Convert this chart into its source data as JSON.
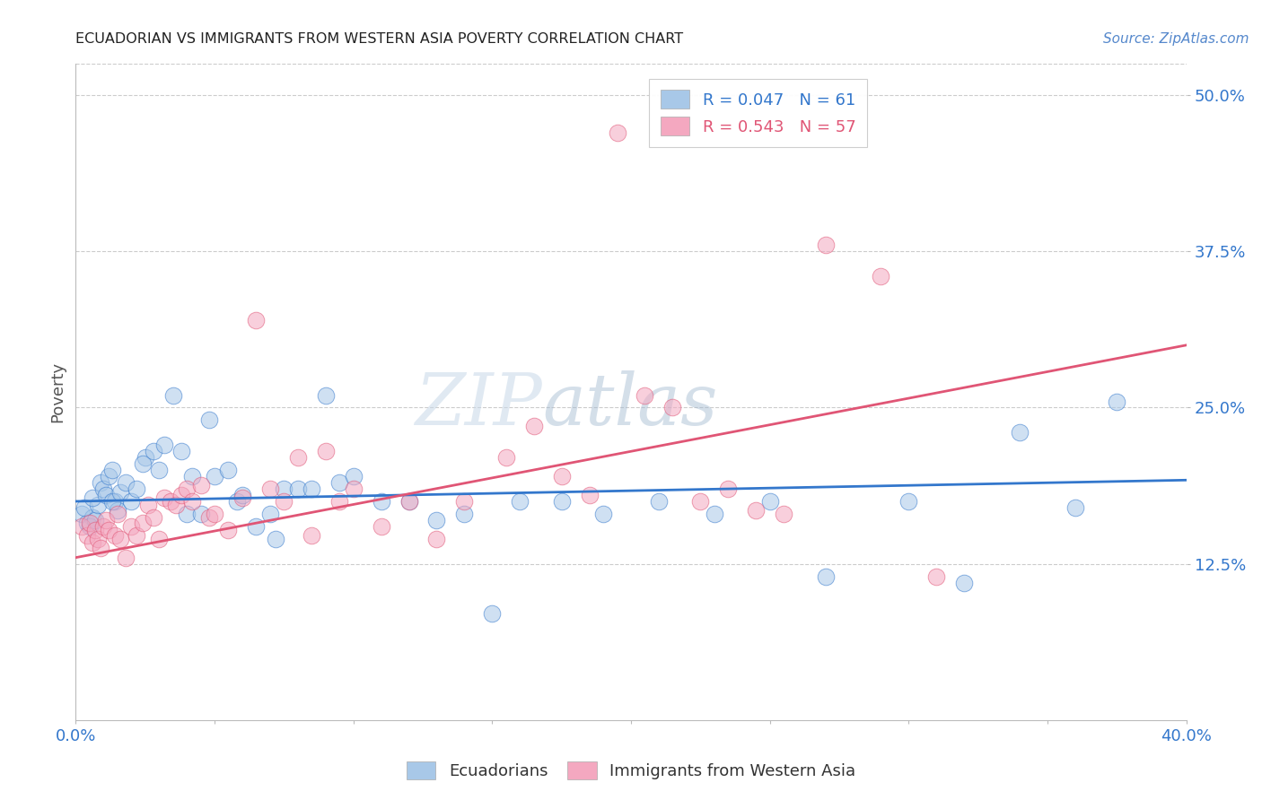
{
  "title": "ECUADORIAN VS IMMIGRANTS FROM WESTERN ASIA POVERTY CORRELATION CHART",
  "source": "Source: ZipAtlas.com",
  "ylabel": "Poverty",
  "ytick_labels": [
    "12.5%",
    "25.0%",
    "37.5%",
    "50.0%"
  ],
  "ytick_values": [
    0.125,
    0.25,
    0.375,
    0.5
  ],
  "xlim": [
    0.0,
    0.4
  ],
  "ylim": [
    0.0,
    0.525
  ],
  "blue_color": "#a8c8e8",
  "pink_color": "#f4a8c0",
  "blue_line_color": "#3377cc",
  "pink_line_color": "#e05575",
  "legend_blue_R": "R = 0.047",
  "legend_blue_N": "N = 61",
  "legend_pink_R": "R = 0.543",
  "legend_pink_N": "N = 57",
  "blue_scatter_x": [
    0.002,
    0.004,
    0.006,
    0.003,
    0.005,
    0.007,
    0.008,
    0.006,
    0.009,
    0.01,
    0.012,
    0.011,
    0.013,
    0.014,
    0.015,
    0.013,
    0.016,
    0.018,
    0.02,
    0.022,
    0.025,
    0.024,
    0.028,
    0.03,
    0.032,
    0.035,
    0.038,
    0.04,
    0.042,
    0.045,
    0.048,
    0.05,
    0.055,
    0.058,
    0.06,
    0.065,
    0.07,
    0.072,
    0.075,
    0.08,
    0.085,
    0.09,
    0.095,
    0.1,
    0.11,
    0.12,
    0.13,
    0.14,
    0.15,
    0.16,
    0.175,
    0.19,
    0.21,
    0.23,
    0.25,
    0.27,
    0.3,
    0.32,
    0.34,
    0.36,
    0.375
  ],
  "blue_scatter_y": [
    0.165,
    0.158,
    0.162,
    0.17,
    0.155,
    0.16,
    0.172,
    0.178,
    0.19,
    0.185,
    0.195,
    0.18,
    0.2,
    0.175,
    0.168,
    0.175,
    0.182,
    0.19,
    0.175,
    0.185,
    0.21,
    0.205,
    0.215,
    0.2,
    0.22,
    0.26,
    0.215,
    0.165,
    0.195,
    0.165,
    0.24,
    0.195,
    0.2,
    0.175,
    0.18,
    0.155,
    0.165,
    0.145,
    0.185,
    0.185,
    0.185,
    0.26,
    0.19,
    0.195,
    0.175,
    0.175,
    0.16,
    0.165,
    0.085,
    0.175,
    0.175,
    0.165,
    0.175,
    0.165,
    0.175,
    0.115,
    0.175,
    0.11,
    0.23,
    0.17,
    0.255
  ],
  "pink_scatter_x": [
    0.002,
    0.004,
    0.006,
    0.005,
    0.007,
    0.008,
    0.009,
    0.01,
    0.011,
    0.012,
    0.014,
    0.015,
    0.016,
    0.018,
    0.02,
    0.022,
    0.024,
    0.026,
    0.028,
    0.03,
    0.032,
    0.034,
    0.036,
    0.038,
    0.04,
    0.042,
    0.045,
    0.048,
    0.05,
    0.055,
    0.06,
    0.065,
    0.07,
    0.075,
    0.08,
    0.085,
    0.09,
    0.095,
    0.1,
    0.11,
    0.12,
    0.13,
    0.14,
    0.155,
    0.165,
    0.175,
    0.185,
    0.195,
    0.205,
    0.215,
    0.225,
    0.235,
    0.245,
    0.255,
    0.27,
    0.29,
    0.31
  ],
  "pink_scatter_y": [
    0.155,
    0.148,
    0.142,
    0.158,
    0.152,
    0.145,
    0.138,
    0.155,
    0.16,
    0.152,
    0.148,
    0.165,
    0.145,
    0.13,
    0.155,
    0.148,
    0.158,
    0.172,
    0.162,
    0.145,
    0.178,
    0.175,
    0.172,
    0.18,
    0.185,
    0.175,
    0.188,
    0.162,
    0.165,
    0.152,
    0.178,
    0.32,
    0.185,
    0.175,
    0.21,
    0.148,
    0.215,
    0.175,
    0.185,
    0.155,
    0.175,
    0.145,
    0.175,
    0.21,
    0.235,
    0.195,
    0.18,
    0.47,
    0.26,
    0.25,
    0.175,
    0.185,
    0.168,
    0.165,
    0.38,
    0.355,
    0.115
  ],
  "blue_line_x": [
    0.0,
    0.4
  ],
  "blue_line_y": [
    0.175,
    0.192
  ],
  "pink_line_x": [
    0.0,
    0.4
  ],
  "pink_line_y": [
    0.13,
    0.3
  ]
}
